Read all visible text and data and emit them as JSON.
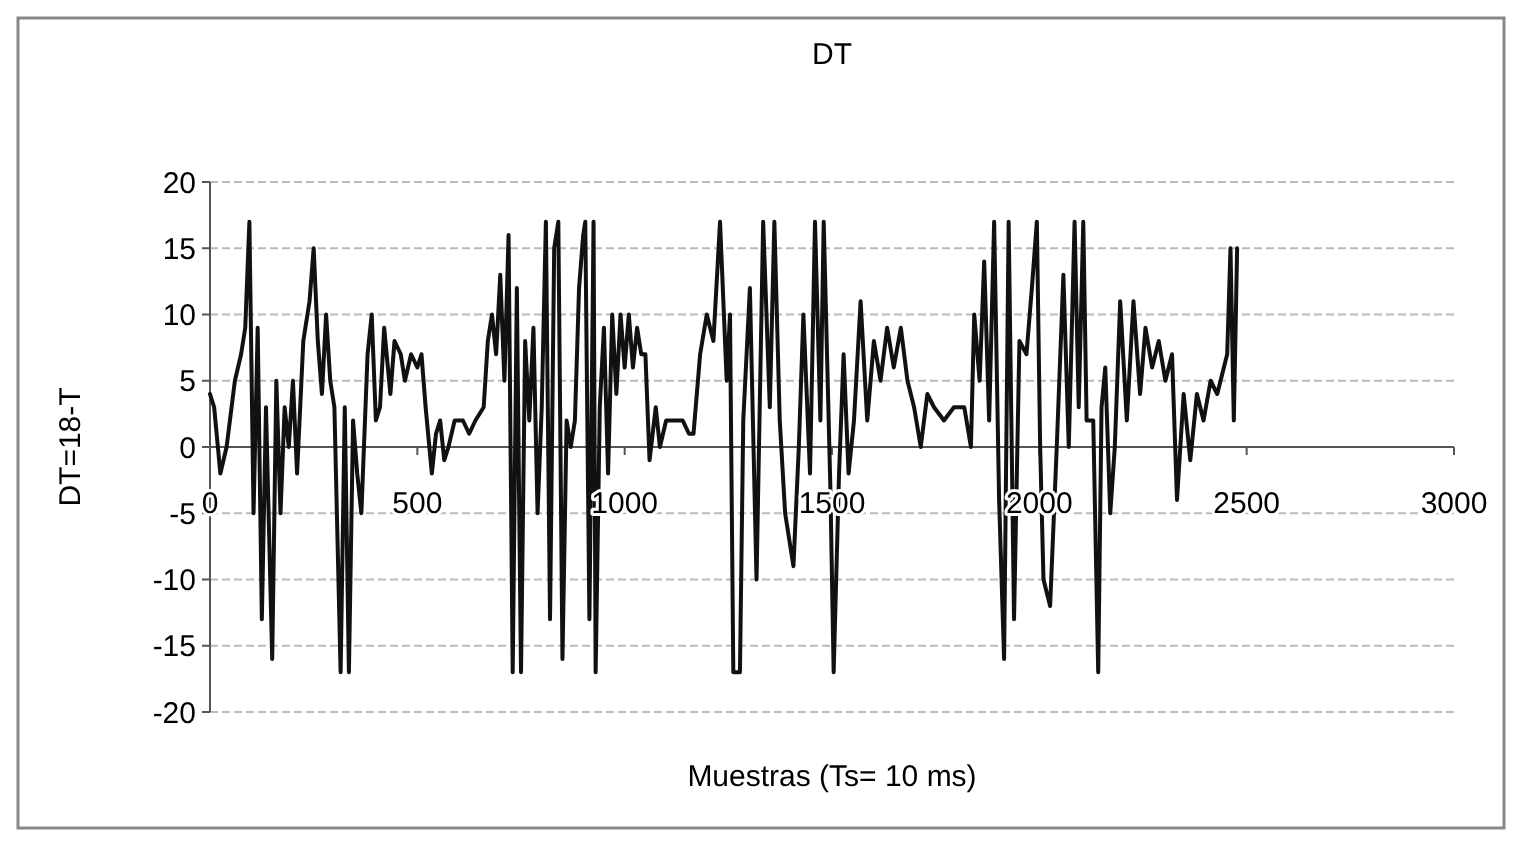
{
  "chart_data": {
    "type": "line",
    "title": "DT",
    "xlabel": "Muestras (Ts= 10 ms)",
    "ylabel": "DT=18-T",
    "xlim": [
      0,
      3000
    ],
    "xticks": [
      0,
      500,
      1000,
      1500,
      2000,
      2500,
      3000
    ],
    "ylim": [
      -20,
      20
    ],
    "yticks": [
      -20,
      -15,
      -10,
      -5,
      0,
      5,
      10,
      15,
      20
    ],
    "grid": "y",
    "marker": "none",
    "line_style": "solid",
    "x": [
      0,
      10,
      25,
      40,
      60,
      75,
      85,
      95,
      105,
      115,
      125,
      135,
      150,
      160,
      170,
      180,
      190,
      200,
      210,
      225,
      240,
      250,
      260,
      270,
      280,
      290,
      300,
      315,
      325,
      335,
      345,
      355,
      365,
      380,
      390,
      400,
      410,
      420,
      435,
      445,
      460,
      470,
      485,
      500,
      510,
      520,
      535,
      545,
      555,
      565,
      575,
      590,
      610,
      625,
      640,
      660,
      670,
      680,
      690,
      700,
      710,
      720,
      730,
      740,
      750,
      760,
      770,
      780,
      790,
      800,
      810,
      820,
      830,
      840,
      850,
      860,
      870,
      880,
      890,
      900,
      905,
      915,
      925,
      930,
      940,
      950,
      960,
      970,
      980,
      990,
      1000,
      1010,
      1020,
      1030,
      1040,
      1050,
      1060,
      1075,
      1085,
      1100,
      1120,
      1140,
      1155,
      1166,
      1182,
      1198,
      1214,
      1230,
      1246,
      1254,
      1262,
      1278,
      1286,
      1302,
      1318,
      1334,
      1350,
      1361,
      1374,
      1387,
      1407,
      1420,
      1431,
      1447,
      1459,
      1472,
      1480,
      1496,
      1504,
      1517,
      1528,
      1540,
      1553,
      1569,
      1585,
      1601,
      1617,
      1633,
      1649,
      1666,
      1682,
      1698,
      1714,
      1730,
      1746,
      1770,
      1794,
      1819,
      1835,
      1843,
      1856,
      1867,
      1879,
      1891,
      1903,
      1915,
      1926,
      1939,
      1952,
      1969,
      1982,
      1994,
      2002,
      2010,
      2026,
      2042,
      2058,
      2071,
      2085,
      2095,
      2106,
      2114,
      2130,
      2142,
      2150,
      2159,
      2171,
      2182,
      2195,
      2211,
      2227,
      2243,
      2256,
      2272,
      2288,
      2304,
      2320,
      2332,
      2348,
      2364,
      2380,
      2396,
      2413,
      2429,
      2453,
      2461,
      2469,
      2477
    ],
    "series": [
      {
        "color": "#111111",
        "values": [
          4,
          3,
          -2,
          0,
          5,
          7,
          9,
          17,
          -5,
          9,
          -13,
          3,
          -16,
          5,
          -5,
          3,
          0,
          5,
          -2,
          8,
          11,
          15,
          8,
          4,
          10,
          5,
          3,
          -17,
          3,
          -17,
          2,
          -2,
          -5,
          7,
          10,
          2,
          3,
          9,
          4,
          8,
          7,
          5,
          7,
          6,
          7,
          3,
          -2,
          1,
          2,
          -1,
          0,
          2,
          2,
          1,
          2,
          3,
          8,
          10,
          7,
          13,
          5,
          16,
          -17,
          12,
          -17,
          8,
          2,
          9,
          -5,
          3,
          17,
          -13,
          15,
          17,
          -16,
          2,
          0,
          2,
          12,
          16,
          17,
          -13,
          17,
          -17,
          3,
          9,
          -2,
          10,
          4,
          10,
          6,
          10,
          6,
          9,
          7,
          7,
          -1,
          3,
          0,
          2,
          2,
          2,
          1,
          1,
          7,
          10,
          8,
          17,
          5,
          10,
          -17,
          -17,
          2,
          12,
          -10,
          17,
          3,
          17,
          2,
          -5,
          -9,
          0,
          10,
          -2,
          17,
          2,
          17,
          -3,
          -17,
          -2,
          7,
          -2,
          2,
          11,
          2,
          8,
          5,
          9,
          6,
          9,
          5,
          3,
          0,
          4,
          3,
          2,
          3,
          3,
          0,
          10,
          5,
          14,
          2,
          17,
          -4,
          -16,
          17,
          -13,
          8,
          7,
          12,
          17,
          0,
          -10,
          -12,
          0,
          13,
          0,
          17,
          3,
          17,
          2,
          2,
          -17,
          3,
          6,
          -5,
          0,
          11,
          2,
          11,
          4,
          9,
          6,
          8,
          5,
          7,
          -4,
          4,
          -1,
          4,
          2,
          5,
          4,
          7,
          15,
          2,
          15
        ]
      }
    ]
  }
}
